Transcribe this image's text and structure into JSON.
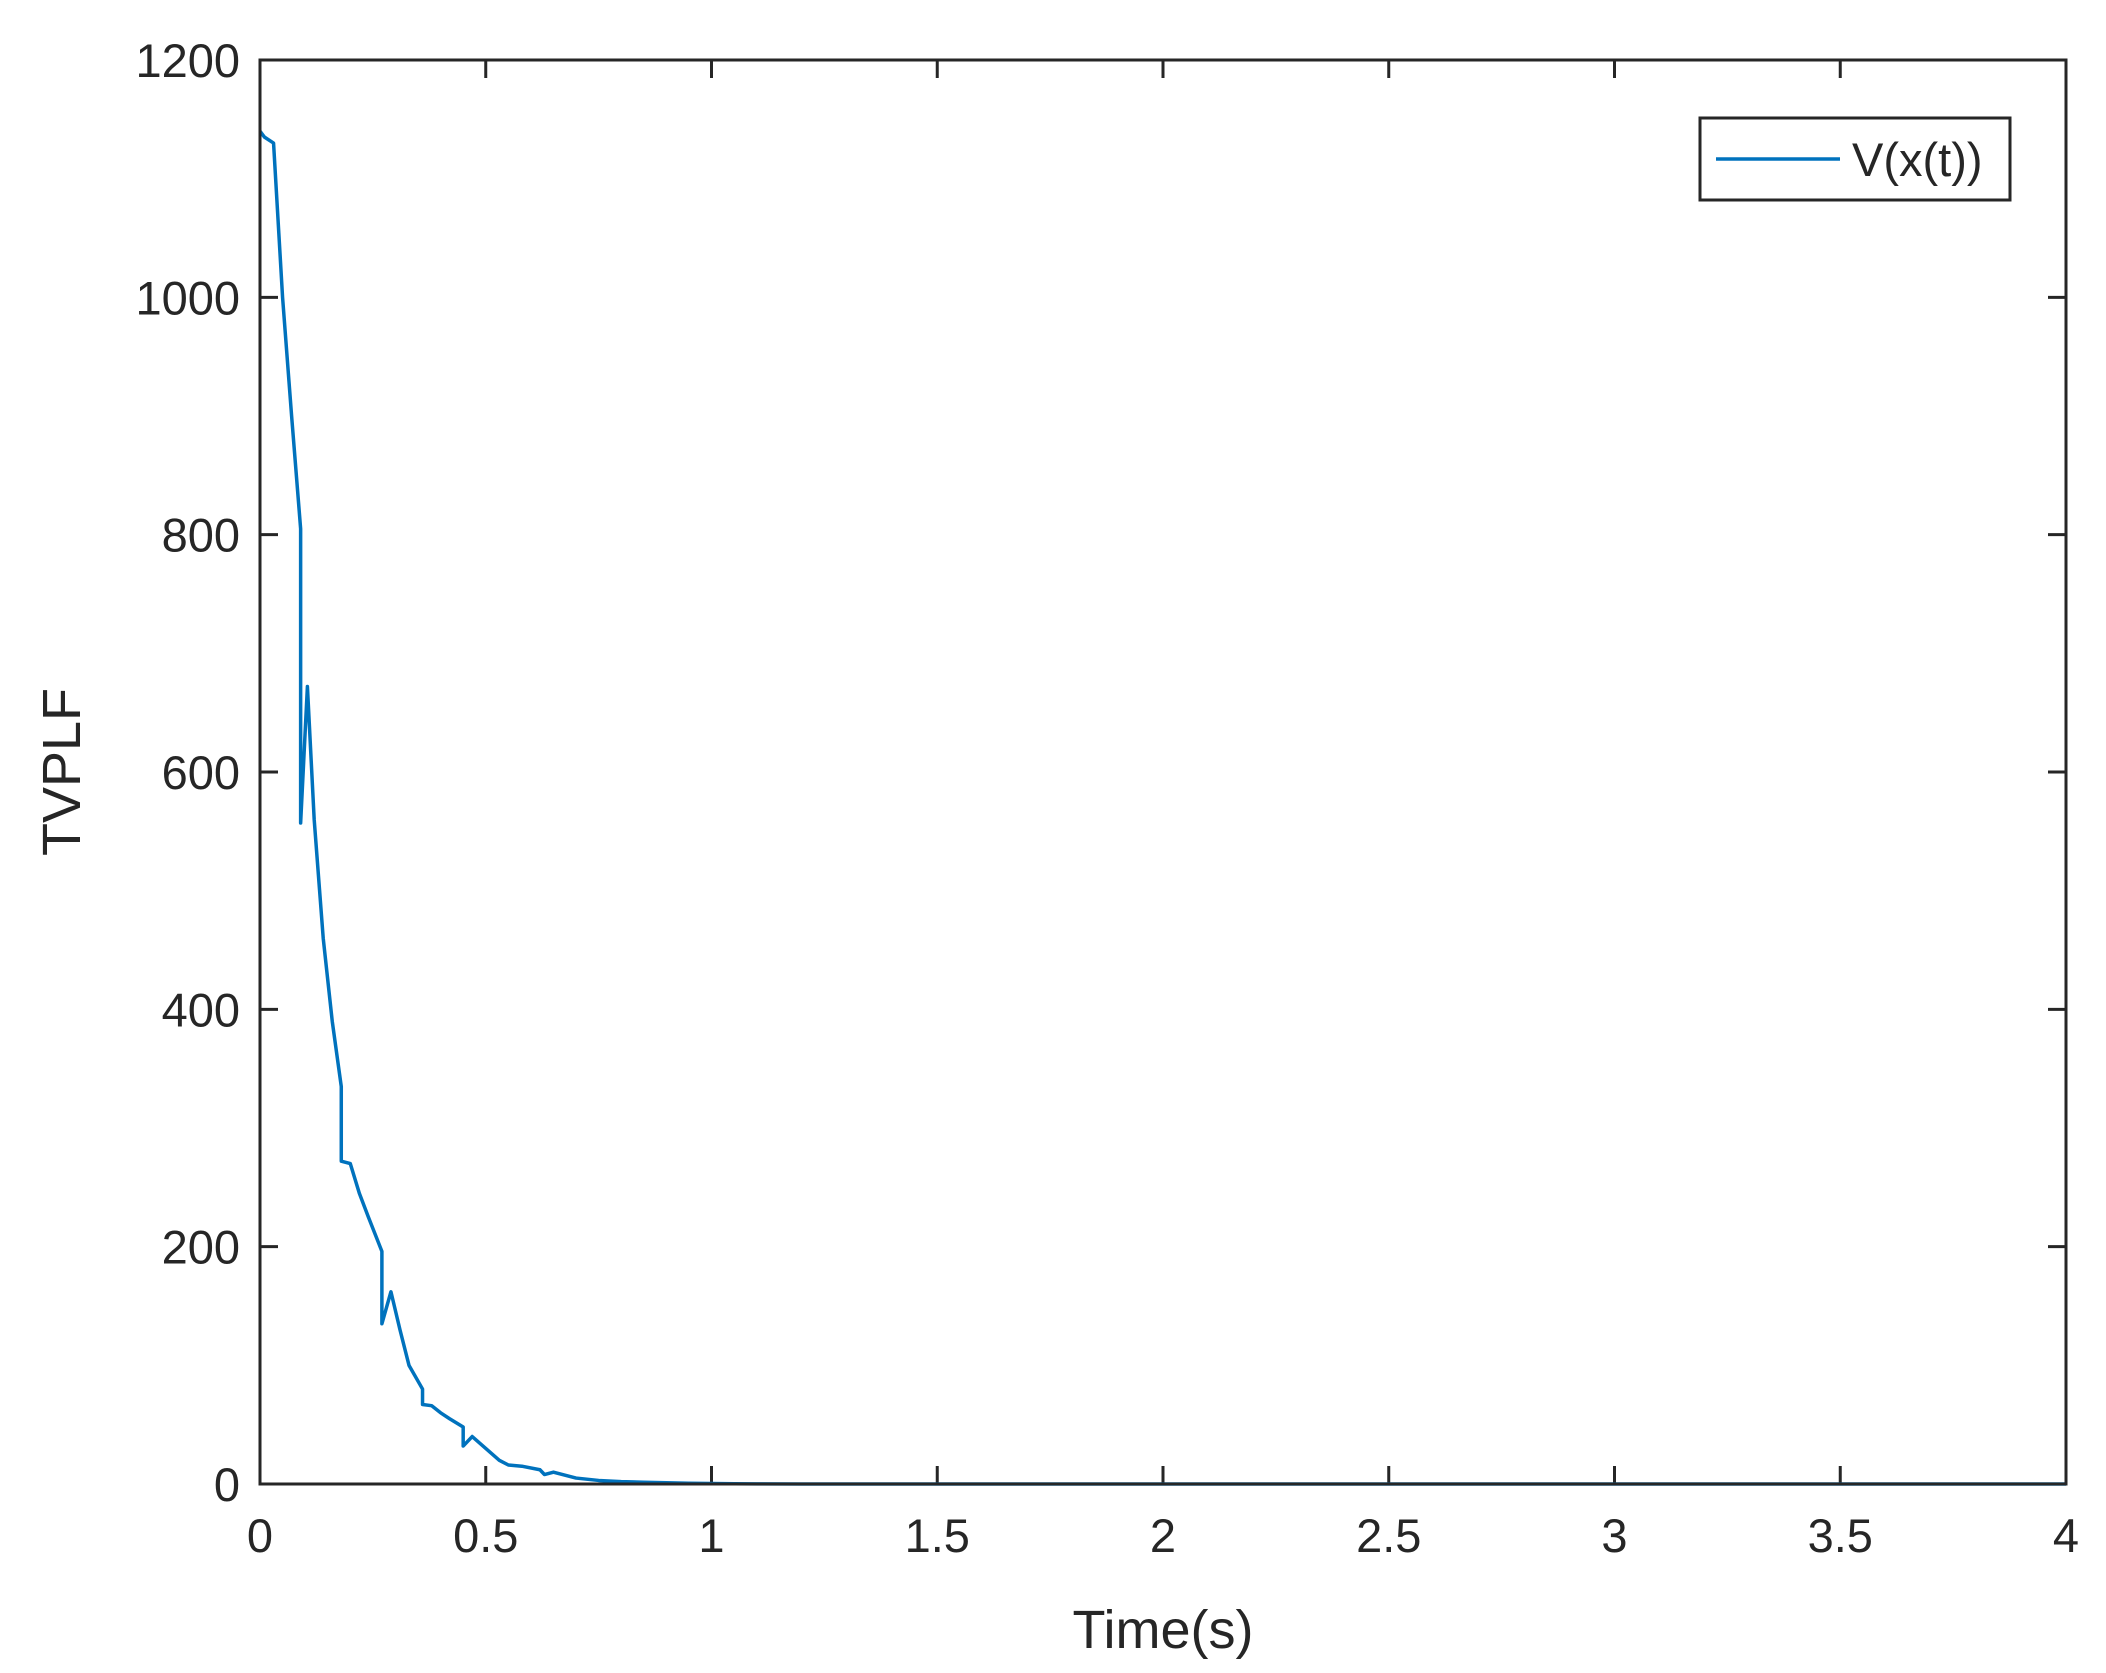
{
  "chart_data": {
    "type": "line",
    "title": "",
    "xlabel": "Time(s)",
    "ylabel": "TVPLF",
    "xlim": [
      0,
      4
    ],
    "ylim": [
      0,
      1200
    ],
    "xticks": [
      0,
      0.5,
      1,
      1.5,
      2,
      2.5,
      3,
      3.5,
      4
    ],
    "xtick_labels": [
      "0",
      "0.5",
      "1",
      "1.5",
      "2",
      "2.5",
      "3",
      "3.5",
      "4"
    ],
    "yticks": [
      0,
      200,
      400,
      600,
      800,
      1000,
      1200
    ],
    "ytick_labels": [
      "0",
      "200",
      "400",
      "600",
      "800",
      "1000",
      "1200"
    ],
    "grid": false,
    "legend": {
      "position": "top-right"
    },
    "series": [
      {
        "name": "V(x(t))",
        "color": "#0072BD",
        "x": [
          0,
          0.01,
          0.03,
          0.05,
          0.07,
          0.09,
          0.09,
          0.105,
          0.12,
          0.14,
          0.16,
          0.18,
          0.18,
          0.2,
          0.22,
          0.24,
          0.27,
          0.27,
          0.29,
          0.31,
          0.33,
          0.36,
          0.36,
          0.38,
          0.4,
          0.42,
          0.45,
          0.45,
          0.47,
          0.5,
          0.53,
          0.55,
          0.58,
          0.62,
          0.63,
          0.65,
          0.7,
          0.75,
          0.8,
          0.85,
          0.9,
          0.95,
          1.0,
          1.05,
          1.1,
          1.2,
          1.5,
          2.0,
          2.5,
          3.0,
          3.5,
          4.0
        ],
        "y": [
          1140,
          1135,
          1130,
          1000,
          900,
          805,
          557,
          672,
          560,
          460,
          390,
          335,
          272,
          270,
          245,
          225,
          196,
          135,
          162,
          130,
          100,
          80,
          67,
          66,
          60,
          55,
          48,
          32,
          40,
          30,
          20,
          16,
          15,
          12,
          8,
          10,
          5,
          3,
          2,
          1.5,
          1,
          0.6,
          0.4,
          0.2,
          0.1,
          0,
          0,
          0,
          0,
          0,
          0,
          0
        ]
      }
    ]
  }
}
